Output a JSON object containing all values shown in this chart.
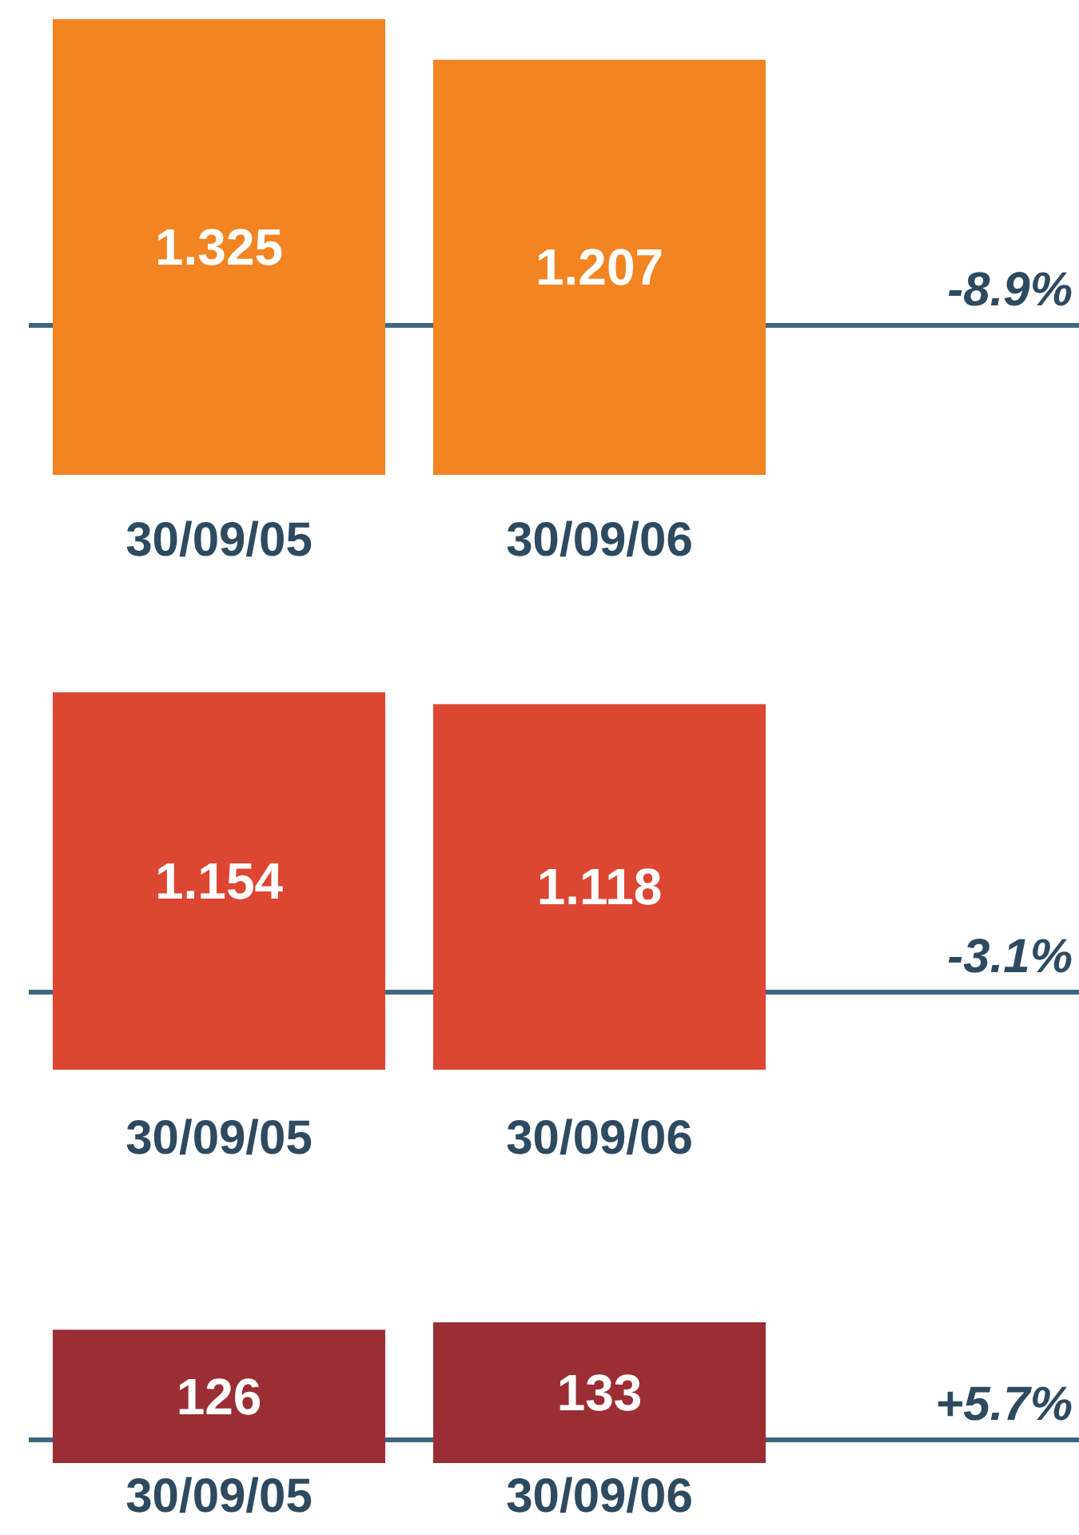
{
  "chart_data": [
    {
      "type": "bar",
      "categories": [
        "30/09/05",
        "30/09/06"
      ],
      "values": [
        1.325,
        1.207
      ],
      "color": "#f28422",
      "data_labels": true,
      "annotations": [
        "-8.9%"
      ]
    },
    {
      "type": "bar",
      "categories": [
        "30/09/05",
        "30/09/06"
      ],
      "values": [
        1.154,
        1.118
      ],
      "color": "#dc4632",
      "data_labels": true,
      "annotations": [
        "-3.1%"
      ]
    },
    {
      "type": "bar",
      "categories": [
        "30/09/05",
        "30/09/06"
      ],
      "values": [
        126,
        133
      ],
      "color": "#9b2d35",
      "data_labels": true,
      "annotations": [
        "+5.7%"
      ]
    }
  ]
}
